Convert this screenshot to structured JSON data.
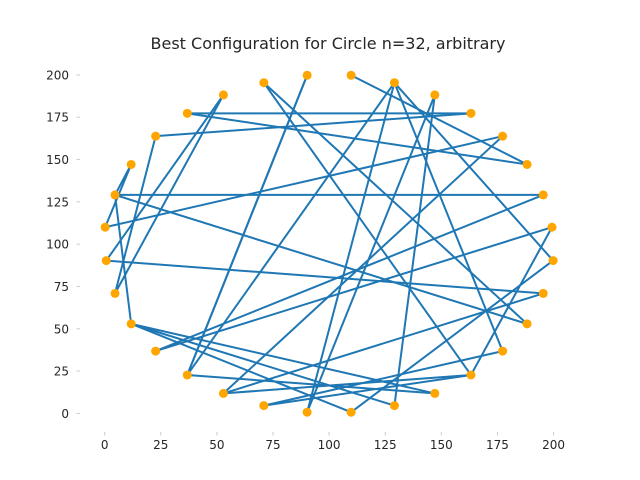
{
  "chart_data": {
    "type": "line",
    "title": "Best Configuration for Circle n=32, arbitrary",
    "xlabel": "",
    "ylabel": "",
    "xlim": [
      -11,
      210
    ],
    "ylim": [
      -11,
      210
    ],
    "xticks": [
      0,
      25,
      50,
      75,
      100,
      125,
      150,
      175,
      200
    ],
    "yticks": [
      0,
      25,
      50,
      75,
      100,
      125,
      150,
      175,
      200
    ],
    "grid": false,
    "line_color": "#1f77b4",
    "point_color": "#ffa500",
    "points": [
      [
        109.8,
        199.8
      ],
      [
        129.1,
        195.4
      ],
      [
        147.1,
        188.2
      ],
      [
        163.2,
        177.3
      ],
      [
        177.3,
        163.8
      ],
      [
        188.2,
        147.1
      ],
      [
        195.4,
        129.1
      ],
      [
        199.3,
        110.0
      ],
      [
        199.8,
        90.3
      ],
      [
        195.4,
        70.9
      ],
      [
        188.2,
        52.9
      ],
      [
        177.3,
        36.8
      ],
      [
        163.2,
        22.7
      ],
      [
        147.1,
        11.8
      ],
      [
        129.1,
        4.6
      ],
      [
        109.8,
        0.7
      ],
      [
        90.2,
        0.7
      ],
      [
        70.9,
        4.6
      ],
      [
        52.9,
        11.8
      ],
      [
        36.8,
        22.7
      ],
      [
        22.7,
        36.8
      ],
      [
        11.8,
        52.9
      ],
      [
        4.6,
        70.9
      ],
      [
        0.7,
        90.3
      ],
      [
        0.2,
        110.0
      ],
      [
        4.6,
        129.1
      ],
      [
        11.8,
        147.1
      ],
      [
        22.7,
        163.8
      ],
      [
        36.8,
        177.3
      ],
      [
        52.9,
        188.2
      ],
      [
        70.9,
        195.4
      ],
      [
        90.2,
        199.8
      ]
    ],
    "path": [
      [
        109.8,
        199.8
      ],
      [
        188.2,
        147.1
      ],
      [
        36.8,
        177.3
      ],
      [
        163.2,
        177.3
      ],
      [
        22.7,
        163.8
      ],
      [
        4.6,
        70.9
      ],
      [
        52.9,
        188.2
      ],
      [
        0.7,
        90.3
      ],
      [
        195.4,
        70.9
      ],
      [
        52.9,
        11.8
      ],
      [
        177.3,
        163.8
      ],
      [
        0.2,
        110.0
      ],
      [
        11.8,
        147.1
      ],
      [
        4.6,
        129.1
      ],
      [
        195.4,
        129.1
      ],
      [
        22.7,
        36.8
      ],
      [
        199.3,
        110.0
      ],
      [
        163.2,
        22.7
      ],
      [
        70.9,
        195.4
      ],
      [
        188.2,
        52.9
      ],
      [
        4.6,
        129.1
      ],
      [
        11.8,
        52.9
      ],
      [
        147.1,
        11.8
      ],
      [
        36.8,
        22.7
      ],
      [
        90.2,
        199.8
      ],
      [
        36.8,
        22.7
      ],
      [
        129.1,
        195.4
      ],
      [
        199.8,
        90.3
      ],
      [
        109.8,
        0.7
      ],
      [
        11.8,
        52.9
      ],
      [
        129.1,
        4.6
      ],
      [
        147.1,
        188.2
      ],
      [
        90.2,
        0.7
      ],
      [
        129.1,
        195.4
      ],
      [
        177.3,
        36.8
      ],
      [
        70.9,
        4.6
      ],
      [
        163.2,
        22.7
      ],
      [
        52.9,
        11.8
      ]
    ]
  }
}
